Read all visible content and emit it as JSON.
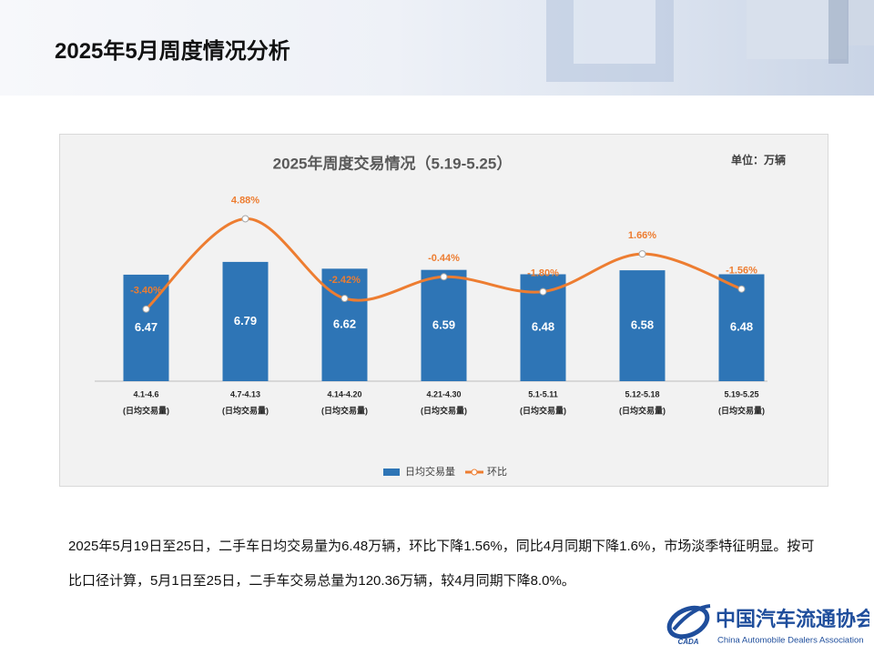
{
  "header": {
    "title": "2025年5月周度情况分析"
  },
  "chart_data": {
    "type": "bar-line",
    "title": "2025年周度交易情况（5.19-5.25）",
    "unit_label": "单位：万辆",
    "categories": [
      "4.1-4.6",
      "4.7-4.13",
      "4.14-4.20",
      "4.21-4.30",
      "5.1-5.11",
      "5.12-5.18",
      "5.19-5.25"
    ],
    "category_note": "(日均交易量)",
    "ylim": [
      3.8,
      9
    ],
    "y2lim": [
      -10,
      9
    ],
    "series": [
      {
        "name": "日均交易量",
        "type": "bar",
        "color": "#2e75b6",
        "values": [
          6.47,
          6.79,
          6.62,
          6.59,
          6.48,
          6.58,
          6.48
        ]
      },
      {
        "name": "环比",
        "type": "line",
        "axis": "y2",
        "color": "#ed7d31",
        "values": [
          -3.4,
          4.88,
          -2.42,
          -0.44,
          -1.8,
          1.66,
          -1.56
        ],
        "value_labels": [
          "-3.40%",
          "4.88%",
          "-2.42%",
          "-0.44%",
          "-1.80%",
          "1.66%",
          "-1.56%"
        ]
      }
    ],
    "legend": "bottom"
  },
  "paragraph": {
    "text": "2025年5月19日至25日，二手车日均交易量为6.48万辆，环比下降1.56%，同比4月同期下降1.6%，市场淡季特征明显。按可比口径计算，5月1日至25日，二手车交易总量为120.36万辆，较4月同期下降8.0%。"
  },
  "logo": {
    "abbr": "CADA",
    "name_cn": "中国汽车流通协会",
    "name_en": "China Automobile Dealers Association"
  }
}
